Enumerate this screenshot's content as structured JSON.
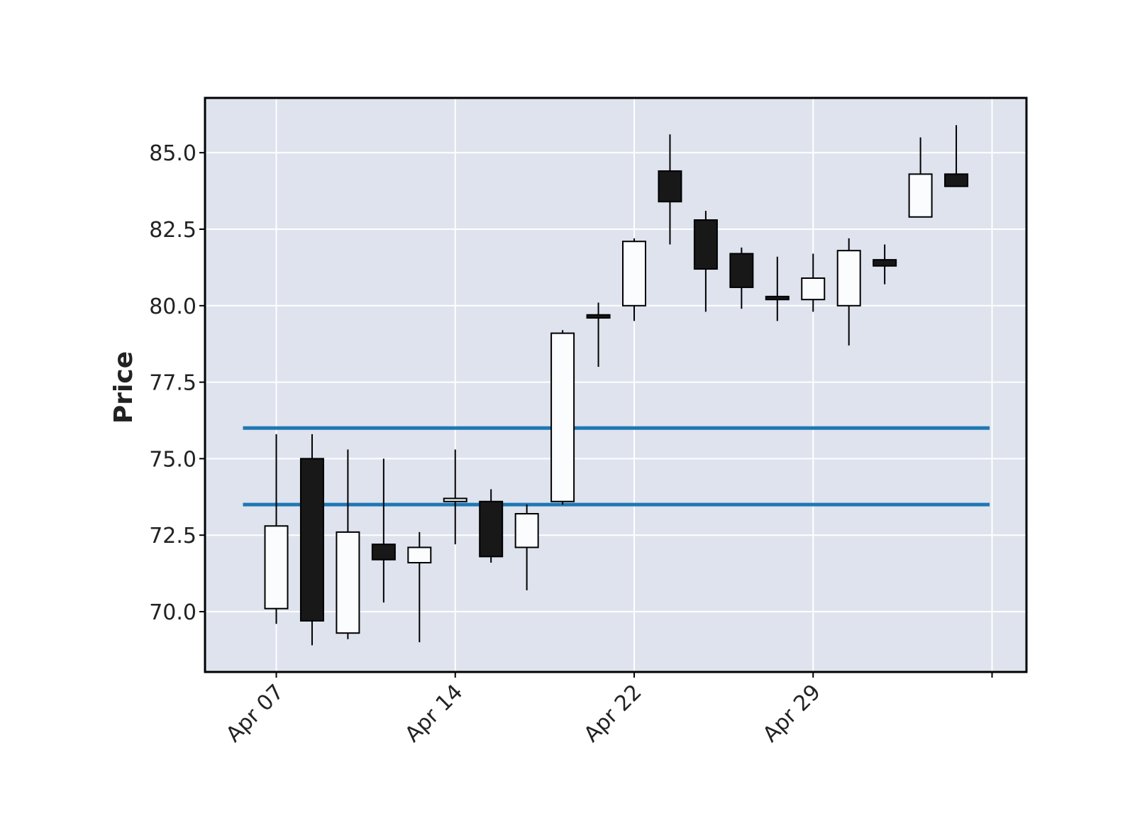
{
  "chart_data": {
    "type": "candlestick",
    "title": "",
    "xlabel": "",
    "ylabel": "Price",
    "ylim": [
      68.1,
      86.9
    ],
    "y_ticks": [
      "70.0",
      "72.5",
      "75.0",
      "77.5",
      "80.0",
      "82.5",
      "85.0"
    ],
    "x_ticks": [
      {
        "label": "Apr 07",
        "index": 0
      },
      {
        "label": "Apr 14",
        "index": 5
      },
      {
        "label": "Apr 22",
        "index": 10
      },
      {
        "label": "Apr 29",
        "index": 15
      },
      {
        "label": "",
        "index": 20
      }
    ],
    "grid": true,
    "candles": [
      {
        "open": 70.1,
        "high": 75.8,
        "low": 69.6,
        "close": 72.8
      },
      {
        "open": 75.0,
        "high": 75.8,
        "low": 68.9,
        "close": 69.7
      },
      {
        "open": 69.3,
        "high": 75.3,
        "low": 69.1,
        "close": 72.6
      },
      {
        "open": 72.2,
        "high": 75.0,
        "low": 70.3,
        "close": 71.7
      },
      {
        "open": 71.6,
        "high": 72.6,
        "low": 69.0,
        "close": 72.1
      },
      {
        "open": 73.6,
        "high": 75.3,
        "low": 72.2,
        "close": 73.7
      },
      {
        "open": 73.6,
        "high": 74.0,
        "low": 71.6,
        "close": 71.8
      },
      {
        "open": 72.1,
        "high": 73.5,
        "low": 70.7,
        "close": 73.2
      },
      {
        "open": 73.6,
        "high": 79.2,
        "low": 73.5,
        "close": 79.1
      },
      {
        "open": 79.7,
        "high": 80.1,
        "low": 78.0,
        "close": 79.6
      },
      {
        "open": 80.0,
        "high": 82.2,
        "low": 79.5,
        "close": 82.1
      },
      {
        "open": 84.4,
        "high": 85.6,
        "low": 82.0,
        "close": 83.4
      },
      {
        "open": 82.8,
        "high": 83.1,
        "low": 79.8,
        "close": 81.2
      },
      {
        "open": 81.7,
        "high": 81.9,
        "low": 79.9,
        "close": 80.6
      },
      {
        "open": 80.3,
        "high": 81.6,
        "low": 79.5,
        "close": 80.2
      },
      {
        "open": 80.2,
        "high": 81.7,
        "low": 79.8,
        "close": 80.9
      },
      {
        "open": 80.0,
        "high": 82.2,
        "low": 78.7,
        "close": 81.8
      },
      {
        "open": 81.5,
        "high": 82.0,
        "low": 80.7,
        "close": 81.3
      },
      {
        "open": 82.9,
        "high": 85.5,
        "low": 82.9,
        "close": 84.3
      },
      {
        "open": 84.3,
        "high": 85.9,
        "low": 83.9,
        "close": 83.9
      }
    ],
    "hlines": [
      {
        "value": 76.0,
        "color": "#1f77b4"
      },
      {
        "value": 73.5,
        "color": "#1f77b4"
      }
    ],
    "colors": {
      "background": "#dee3ee",
      "grid": "#ffffff",
      "up": "#fafcfe",
      "down": "#181818",
      "edge": "#000000"
    }
  }
}
